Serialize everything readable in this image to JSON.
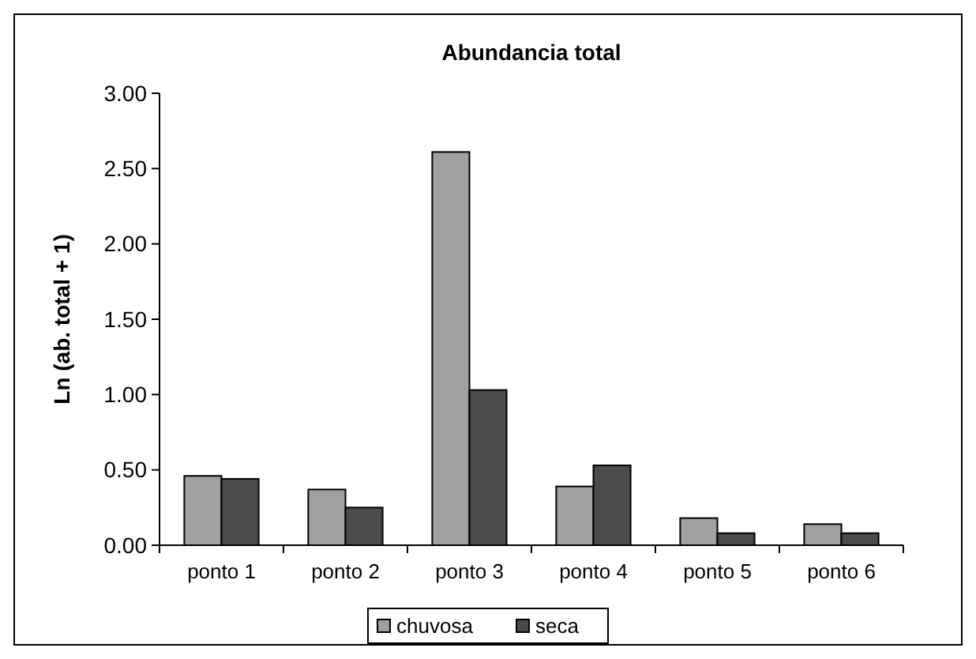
{
  "chart_data": {
    "type": "bar",
    "title": "Abundancia total",
    "ylabel": "Ln (ab. total + 1)",
    "categories": [
      "ponto 1",
      "ponto 2",
      "ponto 3",
      "ponto 4",
      "ponto 5",
      "ponto 6"
    ],
    "series": [
      {
        "name": "chuvosa",
        "color": "#a0a0a0",
        "values": [
          0.46,
          0.37,
          2.61,
          0.39,
          0.18,
          0.14
        ]
      },
      {
        "name": "seca",
        "color": "#4b4b4b",
        "values": [
          0.44,
          0.25,
          1.03,
          0.53,
          0.08,
          0.08
        ]
      }
    ],
    "ylim": [
      0,
      3
    ],
    "yticks": [
      {
        "value": 0,
        "label": "0.00"
      },
      {
        "value": 0.5,
        "label": "0.50"
      },
      {
        "value": 1,
        "label": "1.00"
      },
      {
        "value": 1.5,
        "label": "1.50"
      },
      {
        "value": 2,
        "label": "2.00"
      },
      {
        "value": 2.5,
        "label": "2.50"
      },
      {
        "value": 3,
        "label": "3.00"
      }
    ],
    "grid": false,
    "legend": "bottom"
  }
}
